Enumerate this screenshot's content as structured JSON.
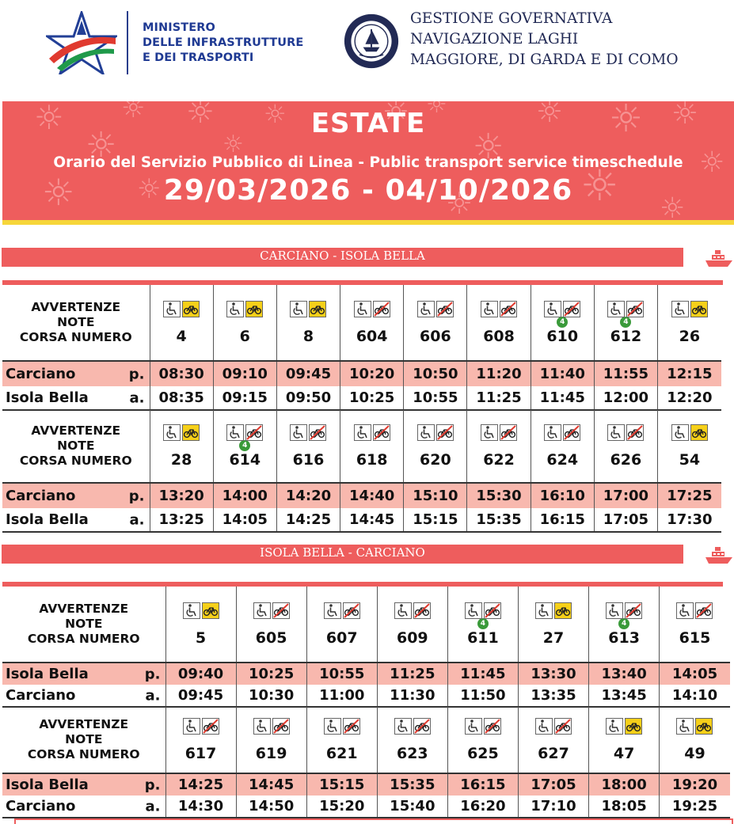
{
  "ministry": {
    "line1": "MINISTERO",
    "line2": "DELLE INFRASTRUTTURE",
    "line3": "E DEI TRASPORTI",
    "logo_colors": {
      "red": "#e03a2f",
      "green": "#1f9a4a",
      "blue": "#223f96"
    }
  },
  "agency": {
    "line1": "GESTIONE GOVERNATIVA",
    "line2": "NAVIGAZIONE LAGHI",
    "line3": "MAGGIORE, DI GARDA E DI COMO",
    "seal_text_top": "GESTIONE NAVIGAZIONE LAGHI",
    "seal_text_bottom": "ITALIA",
    "color": "#222a55"
  },
  "banner": {
    "season": "ESTATE",
    "subtitle": "Orario del Servizio Pubblico di Linea - Public transport service timeschedule",
    "dates": "29/03/2026 - 04/10/2026",
    "bg_color": "#ee5d5d",
    "stripe_color": "#f6d63a"
  },
  "labels": {
    "avvertenze": "AVVERTENZE",
    "note": "NOTE",
    "corsa_numero": "CORSA NUMERO",
    "dep": "p.",
    "arr": "a."
  },
  "icons": {
    "wheelchair": "wheelchair-icon",
    "bike_allowed": "bike-icon",
    "bike_not_allowed": "no-bike-icon",
    "boat": "boat-icon",
    "bike_allowed_color": "#f6d019",
    "no_bike_color": "#e03a2f"
  },
  "routes": [
    {
      "title": "CARCIANO - ISOLA BELLA",
      "from": "Carciano",
      "to": "Isola Bella",
      "blocks": [
        {
          "trips": [
            {
              "num": "4",
              "bike": true,
              "note": ""
            },
            {
              "num": "6",
              "bike": true,
              "note": ""
            },
            {
              "num": "8",
              "bike": true,
              "note": ""
            },
            {
              "num": "604",
              "bike": false,
              "note": ""
            },
            {
              "num": "606",
              "bike": false,
              "note": ""
            },
            {
              "num": "608",
              "bike": false,
              "note": ""
            },
            {
              "num": "610",
              "bike": false,
              "note": "4"
            },
            {
              "num": "612",
              "bike": false,
              "note": "4"
            },
            {
              "num": "26",
              "bike": true,
              "note": ""
            }
          ],
          "dep": [
            "08:30",
            "09:10",
            "09:45",
            "10:20",
            "10:50",
            "11:20",
            "11:40",
            "11:55",
            "12:15"
          ],
          "arr": [
            "08:35",
            "09:15",
            "09:50",
            "10:25",
            "10:55",
            "11:25",
            "11:45",
            "12:00",
            "12:20"
          ]
        },
        {
          "trips": [
            {
              "num": "28",
              "bike": true,
              "note": ""
            },
            {
              "num": "614",
              "bike": false,
              "note": "4"
            },
            {
              "num": "616",
              "bike": false,
              "note": ""
            },
            {
              "num": "618",
              "bike": false,
              "note": ""
            },
            {
              "num": "620",
              "bike": false,
              "note": ""
            },
            {
              "num": "622",
              "bike": false,
              "note": ""
            },
            {
              "num": "624",
              "bike": false,
              "note": ""
            },
            {
              "num": "626",
              "bike": false,
              "note": ""
            },
            {
              "num": "54",
              "bike": true,
              "note": ""
            }
          ],
          "dep": [
            "13:20",
            "14:00",
            "14:20",
            "14:40",
            "15:10",
            "15:30",
            "16:10",
            "17:00",
            "17:25"
          ],
          "arr": [
            "13:25",
            "14:05",
            "14:25",
            "14:45",
            "15:15",
            "15:35",
            "16:15",
            "17:05",
            "17:30"
          ]
        }
      ]
    },
    {
      "title": "ISOLA BELLA - CARCIANO",
      "from": "Isola Bella",
      "to": "Carciano",
      "blocks": [
        {
          "trips": [
            {
              "num": "5",
              "bike": true,
              "note": ""
            },
            {
              "num": "605",
              "bike": false,
              "note": ""
            },
            {
              "num": "607",
              "bike": false,
              "note": ""
            },
            {
              "num": "609",
              "bike": false,
              "note": ""
            },
            {
              "num": "611",
              "bike": false,
              "note": "4"
            },
            {
              "num": "27",
              "bike": true,
              "note": ""
            },
            {
              "num": "613",
              "bike": false,
              "note": "4"
            },
            {
              "num": "615",
              "bike": false,
              "note": ""
            }
          ],
          "dep": [
            "09:40",
            "10:25",
            "10:55",
            "11:25",
            "11:45",
            "13:30",
            "13:40",
            "14:05"
          ],
          "arr": [
            "09:45",
            "10:30",
            "11:00",
            "11:30",
            "11:50",
            "13:35",
            "13:45",
            "14:10"
          ]
        },
        {
          "trips": [
            {
              "num": "617",
              "bike": false,
              "note": ""
            },
            {
              "num": "619",
              "bike": false,
              "note": ""
            },
            {
              "num": "621",
              "bike": false,
              "note": ""
            },
            {
              "num": "623",
              "bike": false,
              "note": ""
            },
            {
              "num": "625",
              "bike": false,
              "note": ""
            },
            {
              "num": "627",
              "bike": false,
              "note": ""
            },
            {
              "num": "47",
              "bike": true,
              "note": ""
            },
            {
              "num": "49",
              "bike": true,
              "note": ""
            }
          ],
          "dep": [
            "14:25",
            "14:45",
            "15:15",
            "15:35",
            "16:15",
            "17:05",
            "18:00",
            "19:20"
          ],
          "arr": [
            "14:30",
            "14:50",
            "15:20",
            "15:40",
            "16:20",
            "17:10",
            "18:05",
            "19:25"
          ]
        }
      ]
    }
  ]
}
